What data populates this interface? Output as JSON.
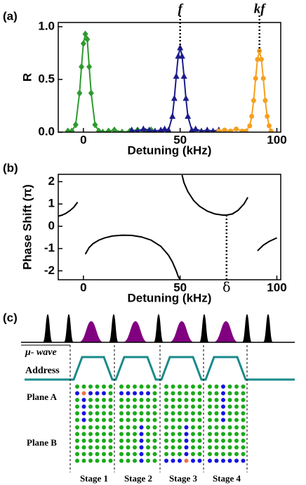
{
  "chart_data": [
    {
      "type": "scatter",
      "panel_label": "(a)",
      "xlabel": "Detuning (kHz)",
      "ylabel": "R",
      "xlim": [
        -13,
        102
      ],
      "ylim": [
        0,
        1.04
      ],
      "xticks": [
        0,
        50,
        100
      ],
      "yticks": [
        {
          "value": 0,
          "label": "0.0"
        },
        {
          "value": 0.5,
          "label": "0.5"
        },
        {
          "value": 1,
          "label": "1.0"
        }
      ],
      "series": [
        {
          "color": "#2e9a2e",
          "marker": "diamond",
          "x": [
            -8,
            -6,
            -4,
            -2,
            -1,
            0,
            1,
            2,
            3,
            4,
            6,
            8,
            10,
            13,
            16,
            20,
            24,
            28,
            32,
            35
          ],
          "values": [
            0.01,
            0.01,
            0.07,
            0.37,
            0.62,
            0.84,
            0.93,
            0.88,
            0.62,
            0.37,
            0.07,
            0.01,
            0.0,
            0.01,
            0.02,
            0.0,
            0.01,
            0.02,
            0.01,
            0.02
          ]
        },
        {
          "color": "#1c1c8c",
          "marker": "triangle",
          "x": [
            25,
            28,
            31,
            34,
            37,
            40,
            42,
            44,
            46,
            47,
            48,
            49,
            50,
            51,
            52,
            53,
            54,
            56,
            58,
            61,
            64,
            67,
            70
          ],
          "values": [
            0.02,
            0.01,
            0.03,
            0.02,
            0.01,
            0.02,
            0.03,
            0.02,
            0.15,
            0.32,
            0.53,
            0.72,
            0.8,
            0.72,
            0.53,
            0.32,
            0.15,
            0.02,
            0.03,
            0.01,
            0.02,
            0.01,
            0.02
          ]
        },
        {
          "color": "#f5a020",
          "marker": "circle",
          "x": [
            70,
            73,
            76,
            79,
            82,
            84,
            86,
            87,
            88,
            89,
            90,
            91,
            92,
            93,
            94,
            95,
            96,
            97
          ],
          "values": [
            0.01,
            0.02,
            0.01,
            0.03,
            0.01,
            0.01,
            0.06,
            0.15,
            0.3,
            0.51,
            0.69,
            0.77,
            0.69,
            0.51,
            0.3,
            0.15,
            0.06,
            0.01
          ]
        }
      ],
      "annotations": [
        {
          "text": "f",
          "x": 50,
          "y": 0.8
        },
        {
          "text": "kf",
          "x": 91,
          "y": 0.77
        }
      ]
    },
    {
      "type": "line",
      "panel_label": "(b)",
      "xlabel": "Detuning (kHz)",
      "ylabel": "Phase Shift (π)",
      "xlim": [
        -13,
        102
      ],
      "ylim": [
        -2.4,
        2.33
      ],
      "xticks": [
        0,
        50,
        100
      ],
      "yticks": [
        -2,
        -1,
        0,
        1,
        2
      ],
      "series": [
        {
          "color": "#000000",
          "x": [
            -13,
            -11,
            -9,
            -7,
            -5,
            -3,
            -1,
            1,
            3,
            5,
            8,
            11,
            15,
            20,
            25,
            30,
            35,
            40,
            44,
            46,
            48,
            49,
            50,
            50.5,
            51,
            52,
            54,
            57,
            60,
            64,
            68,
            72,
            74,
            77,
            80,
            83,
            85,
            87,
            90,
            93,
            96,
            100
          ],
          "values": [
            0.45,
            0.5,
            0.58,
            0.7,
            0.85,
            1.08,
            null,
            -1.25,
            -0.95,
            -0.78,
            -0.62,
            -0.52,
            -0.44,
            -0.4,
            -0.41,
            -0.48,
            -0.62,
            -0.9,
            -1.3,
            -1.6,
            -2.0,
            -2.25,
            -2.4,
            null,
            2.3,
            1.95,
            1.55,
            1.15,
            0.9,
            0.68,
            0.55,
            0.5,
            0.5,
            0.55,
            0.72,
            1.0,
            1.3,
            null,
            -1.1,
            -0.85,
            -0.68,
            -0.52
          ]
        }
      ],
      "annotations": [
        {
          "text": "δ",
          "x": 74,
          "y": 0.5
        }
      ]
    }
  ],
  "diagram": {
    "panel_label": "(c)",
    "microwave": "μ- wave",
    "address": "Address",
    "planes": [
      "Plane A",
      "Plane B"
    ],
    "stages": [
      "Stage 1",
      "Stage 2",
      "Stage 3",
      "Stage 4"
    ]
  }
}
